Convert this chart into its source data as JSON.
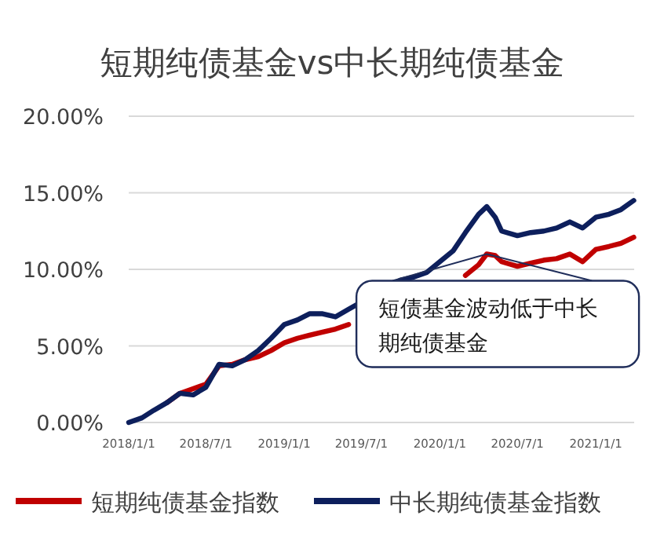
{
  "chart_data": {
    "type": "line",
    "title": "短期纯债基金vs中长期纯债基金",
    "x": [
      "2018-01-01",
      "2018-02-01",
      "2018-03-01",
      "2018-04-01",
      "2018-05-01",
      "2018-06-01",
      "2018-07-01",
      "2018-08-01",
      "2018-09-01",
      "2018-10-01",
      "2018-11-01",
      "2018-12-01",
      "2019-01-01",
      "2019-02-01",
      "2019-03-01",
      "2019-04-01",
      "2019-05-01",
      "2019-06-01",
      "2019-10-01",
      "2019-11-01",
      "2019-12-01",
      "2020-01-01",
      "2020-02-01",
      "2020-03-01",
      "2020-04-01",
      "2020-04-20",
      "2020-05-10",
      "2020-05-25",
      "2020-07-01",
      "2020-08-01",
      "2020-09-01",
      "2020-10-01",
      "2020-11-01",
      "2020-12-01",
      "2021-01-01",
      "2021-02-01",
      "2021-03-01",
      "2021-03-31"
    ],
    "series": [
      {
        "name": "短期纯债基金指数",
        "color": "#c00000",
        "values": [
          null,
          null,
          null,
          1.3,
          1.9,
          2.2,
          2.5,
          3.7,
          3.8,
          4.1,
          4.3,
          4.7,
          5.2,
          5.5,
          5.7,
          5.9,
          6.1,
          6.4,
          null,
          null,
          null,
          null,
          null,
          9.6,
          10.3,
          11.0,
          10.9,
          10.5,
          10.2,
          10.4,
          10.6,
          10.7,
          11.0,
          10.5,
          11.3,
          11.5,
          11.7,
          12.1
        ]
      },
      {
        "name": "中长期纯债基金指数",
        "color": "#0d1f5c",
        "values": [
          0,
          0.3,
          0.8,
          1.3,
          1.9,
          1.8,
          2.3,
          3.8,
          3.7,
          4.1,
          4.7,
          5.5,
          6.4,
          6.7,
          7.1,
          7.1,
          6.9,
          7.4,
          9.3,
          9.5,
          9.8,
          10.5,
          11.2,
          12.4,
          13.6,
          14.1,
          13.4,
          12.5,
          12.2,
          12.4,
          12.5,
          12.7,
          13.1,
          12.7,
          13.4,
          13.6,
          13.9,
          14.5
        ]
      }
    ],
    "xlim": [
      "2018-01-01",
      "2021-04-01"
    ],
    "xticks": [
      {
        "value": "2018-01-01",
        "label": "2018/1/1"
      },
      {
        "value": "2018-07-01",
        "label": "2018/7/1"
      },
      {
        "value": "2019-01-01",
        "label": "2019/1/1"
      },
      {
        "value": "2019-07-01",
        "label": "2019/7/1"
      },
      {
        "value": "2020-01-01",
        "label": "2020/1/1"
      },
      {
        "value": "2020-07-01",
        "label": "2020/7/1"
      },
      {
        "value": "2021-01-01",
        "label": "2021/1/1"
      }
    ],
    "ylim": [
      0,
      20
    ],
    "yticks": [
      {
        "value": 0,
        "label": "0.00%"
      },
      {
        "value": 5,
        "label": "5.00%"
      },
      {
        "value": 10,
        "label": "10.00%"
      },
      {
        "value": 15,
        "label": "15.00%"
      },
      {
        "value": 20,
        "label": "20.00%"
      }
    ],
    "grid": "y",
    "legend": "bottom",
    "annotations": [
      {
        "text": "短债基金波动低于中长期纯债基金",
        "x": "2020-04-20",
        "y": 11.0
      }
    ]
  }
}
